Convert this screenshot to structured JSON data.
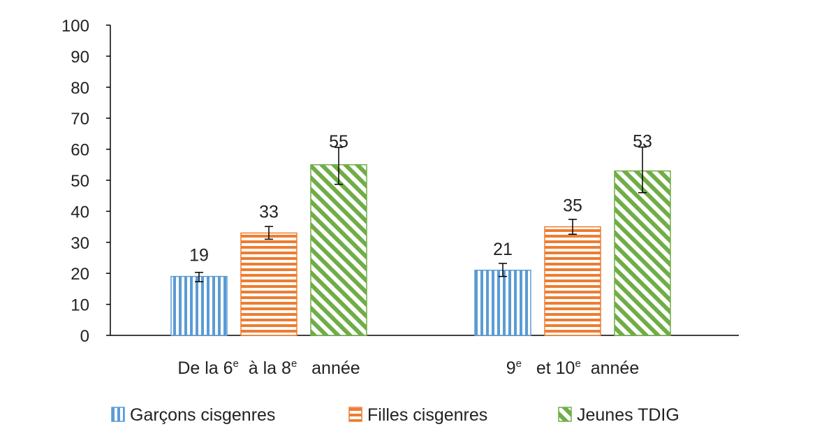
{
  "chart_data": {
    "type": "bar",
    "categories": [
      {
        "parts": [
          {
            "t": "De la 6"
          },
          {
            "t": "e",
            "sup": true
          },
          {
            "t": "  à la 8"
          },
          {
            "t": "e",
            "sup": true
          },
          {
            "t": "   année"
          }
        ]
      },
      {
        "parts": [
          {
            "t": "9"
          },
          {
            "t": "e",
            "sup": true
          },
          {
            "t": "   et 10"
          },
          {
            "t": "e",
            "sup": true
          },
          {
            "t": "  année"
          }
        ]
      }
    ],
    "series": [
      {
        "name": "Garçons cisgenres",
        "values": [
          19,
          21
        ],
        "error": [
          [
            17.3,
            20.3
          ],
          [
            19.0,
            23.2
          ]
        ],
        "color": "#5b9bd5",
        "pattern": "vertical-stripes"
      },
      {
        "name": "Filles cisgenres",
        "values": [
          33,
          35
        ],
        "error": [
          [
            31.0,
            35.1
          ],
          [
            32.6,
            37.4
          ]
        ],
        "color": "#ed7d31",
        "pattern": "horizontal-stripes"
      },
      {
        "name": "Jeunes TDIG",
        "values": [
          55,
          53
        ],
        "error": [
          [
            48.7,
            60.6
          ],
          [
            46.0,
            60.7
          ]
        ],
        "color": "#70ad47",
        "pattern": "diagonal-stripes"
      }
    ],
    "data_labels": [
      "19",
      "21",
      "33",
      "35",
      "55",
      "53"
    ],
    "yticks": [
      "0",
      "10",
      "20",
      "30",
      "40",
      "50",
      "60",
      "70",
      "80",
      "90",
      "100"
    ],
    "ylim": [
      0,
      100
    ],
    "title": "",
    "xlabel": "",
    "ylabel": "",
    "grid": false,
    "legend_position": "bottom"
  }
}
